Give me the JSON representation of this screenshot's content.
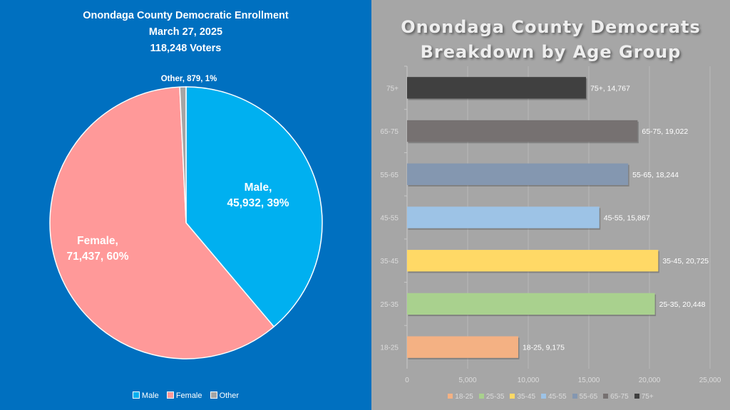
{
  "chart_data": [
    {
      "type": "pie",
      "title": "Onondaga County Democratic Enrollment",
      "subtitle_lines": [
        "March 27, 2025",
        "118,248 Voters"
      ],
      "slices": [
        {
          "label": "Male",
          "value": 45932,
          "percent": "39%",
          "color": "#00b0f0",
          "label_text_1": "Male,",
          "label_text_2": "45,932, 39%"
        },
        {
          "label": "Female",
          "value": 71437,
          "percent": "60%",
          "color": "#ff9999",
          "label_text_1": "Female,",
          "label_text_2": "71,437, 60%"
        },
        {
          "label": "Other",
          "value": 879,
          "percent": "1%",
          "color": "#a5a5a5",
          "label_text_1": "Other, 879, 1%",
          "label_text_2": ""
        }
      ],
      "legend": [
        "Male",
        "Female",
        "Other"
      ],
      "legend_position": "bottom"
    },
    {
      "type": "bar",
      "orientation": "horizontal",
      "title_lines": [
        "Onondaga County Democrats",
        "Breakdown by Age Group"
      ],
      "categories": [
        "18-25",
        "25-35",
        "35-45",
        "45-55",
        "55-65",
        "65-75",
        "75+"
      ],
      "values": [
        9175,
        20448,
        20725,
        15867,
        18244,
        19022,
        14767
      ],
      "data_labels": [
        "18-25, 9,175",
        "25-35, 20,448",
        "35-45, 20,725",
        "45-55, 15,867",
        "55-65, 18,244",
        "65-75, 19,022",
        "75+, 14,767"
      ],
      "colors": [
        "#f4b183",
        "#a9d18e",
        "#ffd966",
        "#9dc3e6",
        "#8497b0",
        "#767171",
        "#404040"
      ],
      "xlabel": "",
      "ylabel": "",
      "xlim": [
        0,
        25000
      ],
      "xticks": [
        0,
        5000,
        10000,
        15000,
        20000,
        25000
      ],
      "xtick_labels": [
        "0",
        "5,000",
        "10,000",
        "15,000",
        "20,000",
        "25,000"
      ],
      "grid": true,
      "legend": [
        "18-25",
        "25-35",
        "35-45",
        "45-55",
        "55-65",
        "65-75",
        "75+"
      ],
      "legend_position": "bottom"
    }
  ]
}
